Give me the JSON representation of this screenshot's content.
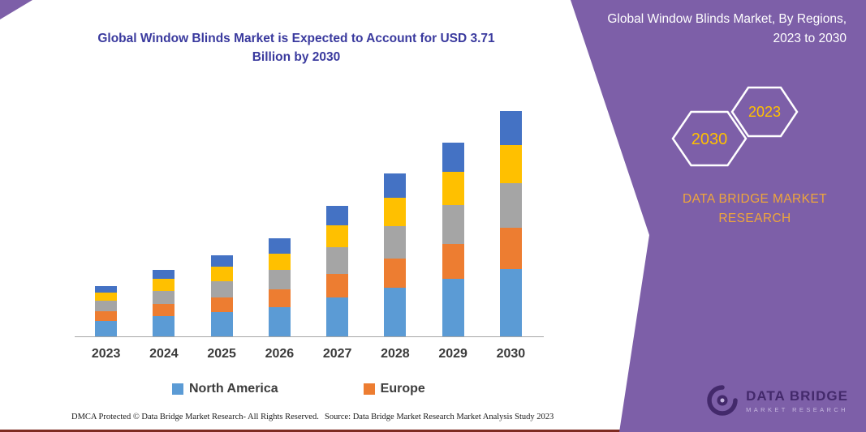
{
  "page": {
    "accent_purple": "#7D5FA8",
    "bottom_line_color": "#7E2B21",
    "title_color": "#3A3A9E",
    "hexagon_year_color": "#FFC000",
    "brand_text_color": "#EFA63B"
  },
  "chart_title": "Global Window Blinds Market is Expected to Account for USD 3.71 Billion by 2030",
  "right_panel": {
    "heading": "Global Window Blinds Market, By Regions, 2023 to 2030",
    "hexagon_left_year": "2030",
    "hexagon_right_year": "2023",
    "brand_line1": "DATA BRIDGE MARKET",
    "brand_line2": "RESEARCH",
    "logo_name": "DATA BRIDGE",
    "logo_tagline": "MARKET RESEARCH"
  },
  "footer": {
    "dmca": "DMCA Protected © Data Bridge Market Research-  All Rights Reserved.",
    "source": "Source: Data Bridge Market Research  Market Analysis Study 2023"
  },
  "chart_data": {
    "type": "bar",
    "stacked": true,
    "title": "Global Window Blinds Market is Expected to Account for USD 3.71 Billion by 2030",
    "unit": "USD Billion",
    "categories": [
      "2023",
      "2024",
      "2025",
      "2026",
      "2027",
      "2028",
      "2029",
      "2030"
    ],
    "series": [
      {
        "name": "North America",
        "color": "#5B9BD5",
        "values": [
          0.26,
          0.33,
          0.4,
          0.48,
          0.64,
          0.8,
          0.95,
          1.11
        ]
      },
      {
        "name": "Europe",
        "color": "#ED7D31",
        "values": [
          0.15,
          0.2,
          0.24,
          0.29,
          0.39,
          0.48,
          0.57,
          0.67
        ]
      },
      {
        "name": "",
        "color": "#A5A5A5",
        "values": [
          0.17,
          0.22,
          0.27,
          0.32,
          0.43,
          0.54,
          0.64,
          0.74
        ]
      },
      {
        "name": "",
        "color": "#FFC000",
        "values": [
          0.14,
          0.19,
          0.23,
          0.27,
          0.37,
          0.46,
          0.54,
          0.63
        ]
      },
      {
        "name": "",
        "color": "#4472C4",
        "values": [
          0.11,
          0.15,
          0.19,
          0.25,
          0.32,
          0.4,
          0.48,
          0.56
        ]
      }
    ],
    "totals": [
      0.83,
      1.09,
      1.33,
      1.61,
      2.15,
      2.68,
      3.18,
      3.71
    ],
    "legend_visible": [
      "North America",
      "Europe"
    ],
    "legend_position": "bottom",
    "ylim": [
      0,
      3.8
    ],
    "gridlines": false,
    "y_axis_labels_shown": false
  }
}
